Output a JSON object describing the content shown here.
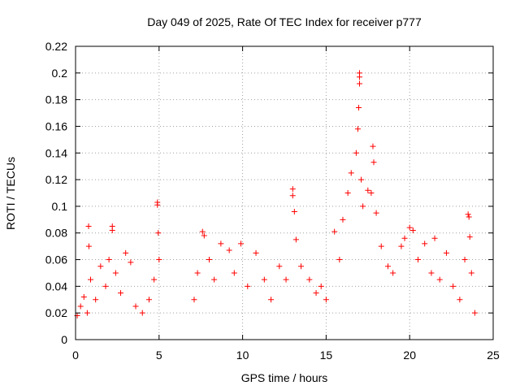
{
  "chart_data": {
    "type": "scatter",
    "title": "Day 049 of 2025, Rate Of TEC Index for receiver p777",
    "xlabel": "GPS time / hours",
    "ylabel": "ROTI / TECUs",
    "xlim": [
      0,
      25
    ],
    "ylim": [
      0,
      0.22
    ],
    "grid": true,
    "marker": "+",
    "marker_color": "#ff0000",
    "xticks": [
      0,
      5,
      10,
      15,
      20,
      25
    ],
    "xtick_labels": [
      "0",
      "5",
      "10",
      "15",
      "20",
      "25"
    ],
    "yticks": [
      0,
      0.02,
      0.04,
      0.06,
      0.08,
      0.1,
      0.12,
      0.14,
      0.16,
      0.18,
      0.2,
      0.22
    ],
    "ytick_labels": [
      "0",
      "0.02",
      "0.04",
      "0.06",
      "0.08",
      "0.1",
      "0.12",
      "0.14",
      "0.16",
      "0.18",
      "0.2",
      "0.22"
    ],
    "data_gap_hours": [
      5.1,
      7.0
    ],
    "series": [
      {
        "name": "ROTI",
        "points": [
          [
            0.1,
            0.018
          ],
          [
            0.3,
            0.025
          ],
          [
            0.5,
            0.032
          ],
          [
            0.7,
            0.02
          ],
          [
            0.78,
            0.085
          ],
          [
            0.8,
            0.07
          ],
          [
            0.9,
            0.045
          ],
          [
            1.2,
            0.03
          ],
          [
            1.5,
            0.055
          ],
          [
            1.8,
            0.04
          ],
          [
            2.0,
            0.06
          ],
          [
            2.2,
            0.085
          ],
          [
            2.2,
            0.082
          ],
          [
            2.4,
            0.05
          ],
          [
            2.7,
            0.035
          ],
          [
            3.0,
            0.065
          ],
          [
            3.3,
            0.058
          ],
          [
            3.6,
            0.025
          ],
          [
            4.0,
            0.02
          ],
          [
            4.4,
            0.03
          ],
          [
            4.7,
            0.045
          ],
          [
            4.9,
            0.103
          ],
          [
            4.9,
            0.101
          ],
          [
            4.95,
            0.08
          ],
          [
            5.0,
            0.06
          ],
          [
            7.1,
            0.03
          ],
          [
            7.3,
            0.05
          ],
          [
            7.6,
            0.081
          ],
          [
            7.7,
            0.078
          ],
          [
            8.0,
            0.06
          ],
          [
            8.3,
            0.045
          ],
          [
            8.7,
            0.072
          ],
          [
            9.2,
            0.067
          ],
          [
            9.5,
            0.05
          ],
          [
            9.9,
            0.072
          ],
          [
            10.3,
            0.04
          ],
          [
            10.8,
            0.065
          ],
          [
            11.3,
            0.045
          ],
          [
            11.7,
            0.03
          ],
          [
            12.2,
            0.055
          ],
          [
            12.6,
            0.045
          ],
          [
            13.0,
            0.113
          ],
          [
            13.0,
            0.108
          ],
          [
            13.1,
            0.096
          ],
          [
            13.2,
            0.075
          ],
          [
            13.5,
            0.055
          ],
          [
            14.0,
            0.045
          ],
          [
            14.4,
            0.035
          ],
          [
            14.7,
            0.04
          ],
          [
            15.0,
            0.03
          ],
          [
            15.5,
            0.081
          ],
          [
            15.8,
            0.06
          ],
          [
            16.0,
            0.09
          ],
          [
            16.3,
            0.11
          ],
          [
            16.5,
            0.125
          ],
          [
            16.8,
            0.14
          ],
          [
            16.9,
            0.158
          ],
          [
            16.95,
            0.174
          ],
          [
            17.0,
            0.2
          ],
          [
            17.0,
            0.197
          ],
          [
            17.0,
            0.192
          ],
          [
            17.1,
            0.12
          ],
          [
            17.2,
            0.1
          ],
          [
            17.5,
            0.112
          ],
          [
            17.7,
            0.11
          ],
          [
            17.8,
            0.145
          ],
          [
            17.85,
            0.133
          ],
          [
            18.0,
            0.095
          ],
          [
            18.3,
            0.07
          ],
          [
            18.7,
            0.055
          ],
          [
            19.0,
            0.05
          ],
          [
            19.5,
            0.07
          ],
          [
            19.7,
            0.076
          ],
          [
            20.0,
            0.084
          ],
          [
            20.2,
            0.082
          ],
          [
            20.5,
            0.06
          ],
          [
            20.9,
            0.072
          ],
          [
            21.3,
            0.05
          ],
          [
            21.5,
            0.076
          ],
          [
            21.8,
            0.045
          ],
          [
            22.2,
            0.065
          ],
          [
            22.6,
            0.04
          ],
          [
            23.0,
            0.03
          ],
          [
            23.3,
            0.06
          ],
          [
            23.5,
            0.094
          ],
          [
            23.55,
            0.092
          ],
          [
            23.6,
            0.077
          ],
          [
            23.7,
            0.05
          ],
          [
            23.9,
            0.02
          ]
        ]
      }
    ]
  }
}
